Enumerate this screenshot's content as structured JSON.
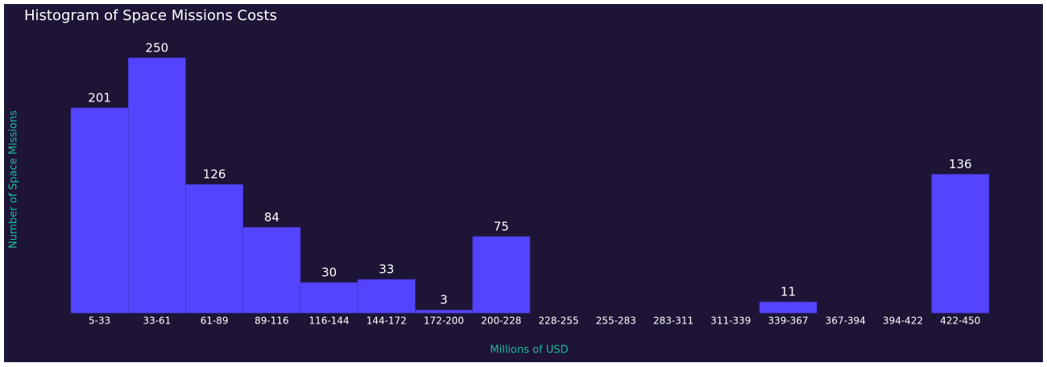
{
  "chart_data": {
    "type": "bar",
    "title": "Histogram of Space Missions Costs",
    "x_label": "Millions of USD",
    "y_label": "Number of Space Missions",
    "categories": [
      "5-33",
      "33-61",
      "61-89",
      "89-116",
      "116-144",
      "144-172",
      "172-200",
      "200-228",
      "228-255",
      "255-283",
      "283-311",
      "311-339",
      "339-367",
      "367-394",
      "394-422",
      "422-450"
    ],
    "values": [
      201,
      250,
      126,
      84,
      30,
      33,
      3,
      75,
      0,
      0,
      0,
      0,
      11,
      0,
      0,
      136
    ],
    "color": "#5544ff",
    "ylim": [
      0,
      262.5
    ]
  }
}
